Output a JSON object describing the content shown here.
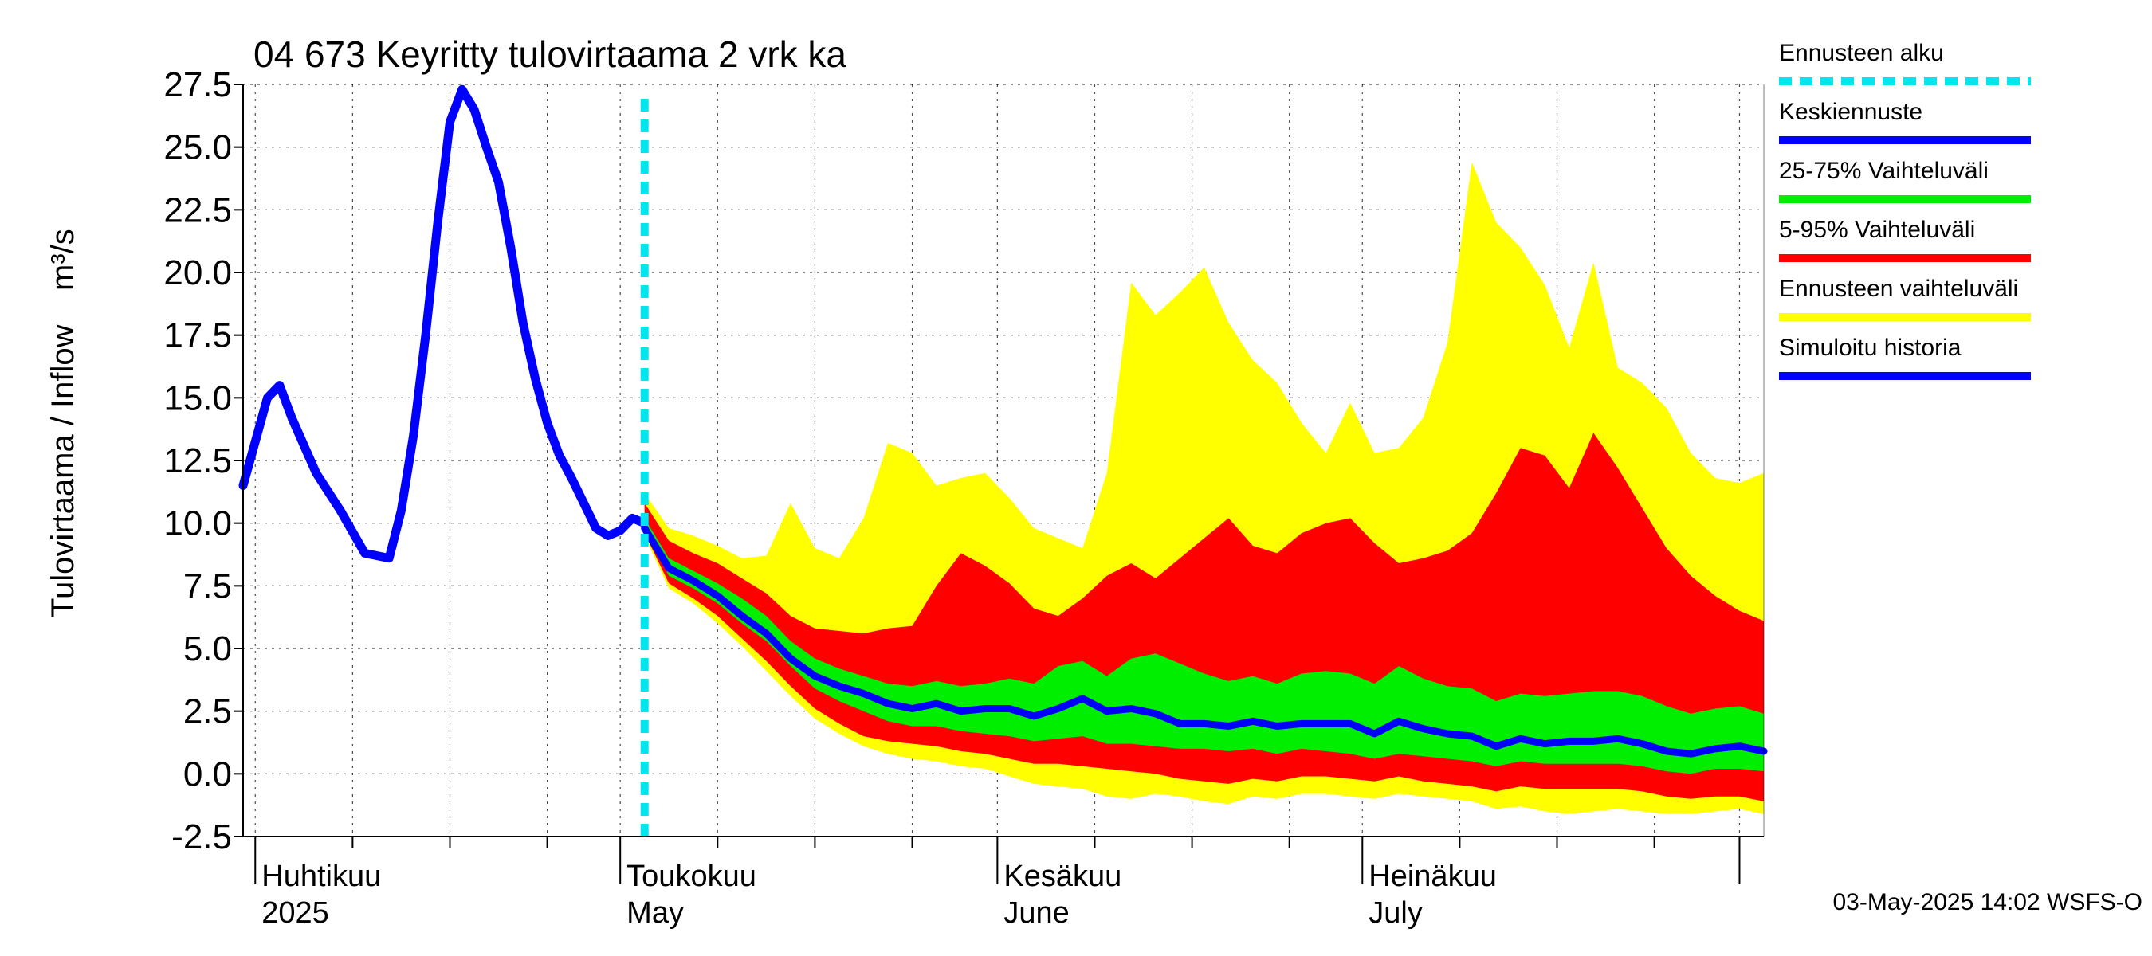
{
  "chart_data": {
    "type": "area",
    "title": "04 673 Keyritty tulovirtaama 2 vrk ka",
    "ylabel": "Tulovirtaama / Inflow",
    "yunit": "m³/s",
    "ylim": [
      -2.5,
      27.5
    ],
    "yticks": [
      "-2.5",
      "0.0",
      "2.5",
      "5.0",
      "7.5",
      "10.0",
      "12.5",
      "15.0",
      "17.5",
      "20.0",
      "22.5",
      "25.0",
      "27.5"
    ],
    "xlim": [
      "2025-03-31",
      "2025-08-03"
    ],
    "month_labels": [
      {
        "date": "2025-04-01",
        "line1": "Huhtikuu",
        "line2": "2025"
      },
      {
        "date": "2025-05-01",
        "line1": "Toukokuu",
        "line2": "May"
      },
      {
        "date": "2025-06-01",
        "line1": "Kesäkuu",
        "line2": "June"
      },
      {
        "date": "2025-07-01",
        "line1": "Heinäkuu",
        "line2": "July"
      }
    ],
    "forecast_start": "2025-05-03",
    "grid": true,
    "legend_position": "right",
    "legend": [
      {
        "name": "Ennusteen alku",
        "color": "#00e5ee",
        "style": "dashed"
      },
      {
        "name": "Keskiennuste",
        "color": "#0000ff",
        "style": "solid"
      },
      {
        "name": "25-75% Vaihteluväli",
        "color": "#00ee00",
        "style": "solid"
      },
      {
        "name": "5-95% Vaihteluväli",
        "color": "#ff0000",
        "style": "solid"
      },
      {
        "name": "Ennusteen vaihteluväli",
        "color": "#ffff00",
        "style": "solid"
      },
      {
        "name": "Simuloitu historia",
        "color": "#0000ff",
        "style": "solid"
      }
    ],
    "history": {
      "name": "Simuloitu historia",
      "x": [
        "2025-03-31",
        "2025-04-02",
        "2025-04-03",
        "2025-04-04",
        "2025-04-06",
        "2025-04-08",
        "2025-04-10",
        "2025-04-12",
        "2025-04-13",
        "2025-04-14",
        "2025-04-15",
        "2025-04-16",
        "2025-04-17",
        "2025-04-18",
        "2025-04-19",
        "2025-04-20",
        "2025-04-21",
        "2025-04-22",
        "2025-04-23",
        "2025-04-24",
        "2025-04-25",
        "2025-04-26",
        "2025-04-27",
        "2025-04-28",
        "2025-04-29",
        "2025-04-30",
        "2025-05-01",
        "2025-05-02",
        "2025-05-03"
      ],
      "values": [
        11.5,
        15.0,
        15.5,
        14.2,
        12.0,
        10.5,
        8.8,
        8.6,
        10.5,
        13.5,
        17.5,
        22.0,
        26.0,
        27.3,
        26.5,
        25.0,
        23.6,
        21.0,
        18.0,
        15.8,
        14.0,
        12.7,
        11.8,
        10.8,
        9.8,
        9.5,
        9.7,
        10.2,
        10.0
      ]
    },
    "forecast": {
      "x": [
        "2025-05-03",
        "2025-05-05",
        "2025-05-07",
        "2025-05-09",
        "2025-05-11",
        "2025-05-13",
        "2025-05-15",
        "2025-05-17",
        "2025-05-19",
        "2025-05-21",
        "2025-05-23",
        "2025-05-25",
        "2025-05-27",
        "2025-05-29",
        "2025-05-31",
        "2025-06-02",
        "2025-06-04",
        "2025-06-06",
        "2025-06-08",
        "2025-06-10",
        "2025-06-12",
        "2025-06-14",
        "2025-06-16",
        "2025-06-18",
        "2025-06-20",
        "2025-06-22",
        "2025-06-24",
        "2025-06-26",
        "2025-06-28",
        "2025-06-30",
        "2025-07-02",
        "2025-07-04",
        "2025-07-06",
        "2025-07-08",
        "2025-07-10",
        "2025-07-12",
        "2025-07-14",
        "2025-07-16",
        "2025-07-18",
        "2025-07-20",
        "2025-07-22",
        "2025-07-24",
        "2025-07-26",
        "2025-07-28",
        "2025-07-30",
        "2025-08-01",
        "2025-08-03"
      ],
      "median": [
        9.8,
        8.2,
        7.7,
        7.1,
        6.3,
        5.6,
        4.6,
        3.9,
        3.5,
        3.2,
        2.8,
        2.6,
        2.8,
        2.5,
        2.6,
        2.6,
        2.3,
        2.6,
        3.0,
        2.5,
        2.6,
        2.4,
        2.0,
        2.0,
        1.9,
        2.1,
        1.9,
        2.0,
        2.0,
        2.0,
        1.6,
        2.1,
        1.8,
        1.6,
        1.5,
        1.1,
        1.4,
        1.2,
        1.3,
        1.3,
        1.4,
        1.2,
        0.9,
        0.8,
        1.0,
        1.1,
        0.9
      ],
      "p25": [
        9.7,
        7.9,
        7.4,
        6.8,
        6.0,
        5.3,
        4.3,
        3.4,
        2.9,
        2.5,
        2.1,
        1.9,
        1.9,
        1.7,
        1.6,
        1.5,
        1.3,
        1.4,
        1.5,
        1.2,
        1.2,
        1.1,
        1.0,
        1.0,
        0.9,
        1.0,
        0.8,
        1.0,
        0.9,
        0.8,
        0.6,
        0.8,
        0.7,
        0.6,
        0.5,
        0.3,
        0.5,
        0.4,
        0.4,
        0.4,
        0.4,
        0.3,
        0.1,
        0.0,
        0.2,
        0.2,
        0.1
      ],
      "p75": [
        10.2,
        8.6,
        8.1,
        7.6,
        7.0,
        6.3,
        5.3,
        4.6,
        4.2,
        3.9,
        3.6,
        3.5,
        3.7,
        3.5,
        3.6,
        3.8,
        3.6,
        4.3,
        4.5,
        3.9,
        4.6,
        4.8,
        4.4,
        4.0,
        3.7,
        3.9,
        3.6,
        4.0,
        4.1,
        4.0,
        3.6,
        4.3,
        3.8,
        3.5,
        3.4,
        2.9,
        3.2,
        3.1,
        3.2,
        3.3,
        3.3,
        3.1,
        2.7,
        2.4,
        2.6,
        2.7,
        2.4
      ],
      "p05": [
        9.6,
        7.6,
        7.0,
        6.3,
        5.4,
        4.5,
        3.5,
        2.6,
        2.0,
        1.5,
        1.3,
        1.2,
        1.1,
        0.9,
        0.8,
        0.6,
        0.4,
        0.4,
        0.3,
        0.2,
        0.1,
        0.0,
        -0.2,
        -0.3,
        -0.4,
        -0.2,
        -0.3,
        -0.1,
        -0.1,
        -0.2,
        -0.3,
        -0.1,
        -0.3,
        -0.4,
        -0.5,
        -0.7,
        -0.5,
        -0.6,
        -0.6,
        -0.6,
        -0.6,
        -0.7,
        -0.9,
        -1.0,
        -0.9,
        -0.9,
        -1.1
      ],
      "p95": [
        10.8,
        9.3,
        8.8,
        8.4,
        7.8,
        7.2,
        6.3,
        5.8,
        5.7,
        5.6,
        5.8,
        5.9,
        7.5,
        8.8,
        8.3,
        7.6,
        6.6,
        6.3,
        7.0,
        7.9,
        8.4,
        7.8,
        8.6,
        9.4,
        10.2,
        9.1,
        8.8,
        9.6,
        10.0,
        10.2,
        9.2,
        8.4,
        8.6,
        8.9,
        9.6,
        11.2,
        13.0,
        12.7,
        11.4,
        13.6,
        12.2,
        10.6,
        9.0,
        7.9,
        7.1,
        6.5,
        6.1
      ],
      "min": [
        9.5,
        7.4,
        6.8,
        6.0,
        5.1,
        4.1,
        3.1,
        2.2,
        1.6,
        1.1,
        0.8,
        0.6,
        0.5,
        0.3,
        0.2,
        -0.1,
        -0.4,
        -0.5,
        -0.6,
        -0.9,
        -1.0,
        -0.8,
        -0.9,
        -1.1,
        -1.2,
        -0.9,
        -1.0,
        -0.8,
        -0.8,
        -0.9,
        -1.0,
        -0.8,
        -0.9,
        -1.0,
        -1.1,
        -1.4,
        -1.3,
        -1.5,
        -1.6,
        -1.5,
        -1.4,
        -1.5,
        -1.6,
        -1.6,
        -1.5,
        -1.4,
        -1.6
      ],
      "max": [
        11.2,
        9.8,
        9.5,
        9.1,
        8.6,
        8.7,
        10.8,
        9.0,
        8.6,
        10.2,
        13.2,
        12.8,
        11.5,
        11.8,
        12.0,
        11.0,
        9.8,
        9.4,
        9.0,
        12.0,
        19.6,
        18.3,
        19.2,
        20.2,
        18.0,
        16.5,
        15.6,
        14.0,
        12.8,
        14.8,
        12.8,
        13.0,
        14.2,
        17.2,
        24.4,
        22.0,
        21.0,
        19.5,
        17.0,
        20.4,
        16.2,
        15.6,
        14.6,
        12.8,
        11.8,
        11.6,
        12.0
      ]
    }
  },
  "footer": {
    "timestamp": "03-May-2025 14:02 WSFS-O"
  }
}
